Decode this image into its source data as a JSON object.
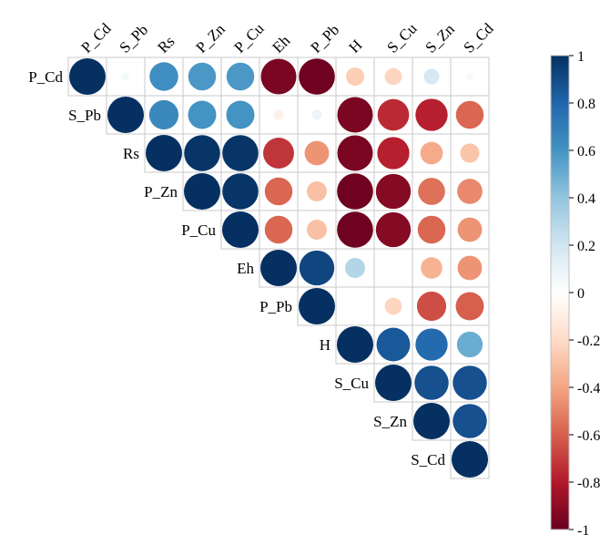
{
  "chart_data": {
    "type": "heatmap",
    "subtype": "correlation-matrix-upper-circles",
    "variables": [
      "P_Cd",
      "S_Pb",
      "Rs",
      "P_Zn",
      "P_Cu",
      "Eh",
      "P_Pb",
      "H",
      "S_Cu",
      "S_Zn",
      "S_Cd"
    ],
    "matrix": [
      [
        1,
        0.05,
        0.62,
        0.58,
        0.58,
        -0.95,
        -0.98,
        -0.25,
        -0.22,
        0.18,
        0.04
      ],
      [
        null,
        1,
        0.65,
        0.6,
        0.6,
        -0.08,
        0.08,
        -0.95,
        -0.75,
        -0.78,
        -0.58
      ],
      [
        null,
        null,
        1,
        0.98,
        0.98,
        -0.72,
        -0.45,
        -0.95,
        -0.78,
        -0.38,
        -0.28
      ],
      [
        null,
        null,
        null,
        1,
        0.98,
        -0.58,
        -0.3,
        -0.98,
        -0.92,
        -0.55,
        -0.48
      ],
      [
        null,
        null,
        null,
        null,
        1,
        -0.58,
        -0.3,
        -0.98,
        -0.92,
        -0.58,
        -0.45
      ],
      [
        null,
        null,
        null,
        null,
        null,
        1,
        0.92,
        0.3,
        0,
        -0.35,
        -0.45
      ],
      [
        null,
        null,
        null,
        null,
        null,
        null,
        1,
        0,
        -0.22,
        -0.65,
        -0.6
      ],
      [
        null,
        null,
        null,
        null,
        null,
        null,
        null,
        1,
        0.85,
        0.78,
        0.5
      ],
      [
        null,
        null,
        null,
        null,
        null,
        null,
        null,
        null,
        1,
        0.88,
        0.88
      ],
      [
        null,
        null,
        null,
        null,
        null,
        null,
        null,
        null,
        null,
        1,
        0.88
      ],
      [
        null,
        null,
        null,
        null,
        null,
        null,
        null,
        null,
        null,
        null,
        1
      ]
    ],
    "color_range": [
      -1,
      1
    ],
    "colorbar_ticks": [
      "1",
      "0.8",
      "0.6",
      "0.4",
      "0.2",
      "0",
      "-0.2",
      "-0.4",
      "-0.6",
      "-0.8",
      "-1"
    ],
    "colorbar_tick_values": [
      1,
      0.8,
      0.6,
      0.4,
      0.2,
      0,
      -0.2,
      -0.4,
      -0.6,
      -0.8,
      -1
    ],
    "palette": [
      "#67001F",
      "#B2182B",
      "#D6604D",
      "#F4A582",
      "#FDDBC7",
      "#FFFFFF",
      "#D1E5F0",
      "#92C5DE",
      "#4393C3",
      "#2166AC",
      "#053061"
    ],
    "grid_color": "#C8C8C8",
    "legend_position": "right"
  }
}
